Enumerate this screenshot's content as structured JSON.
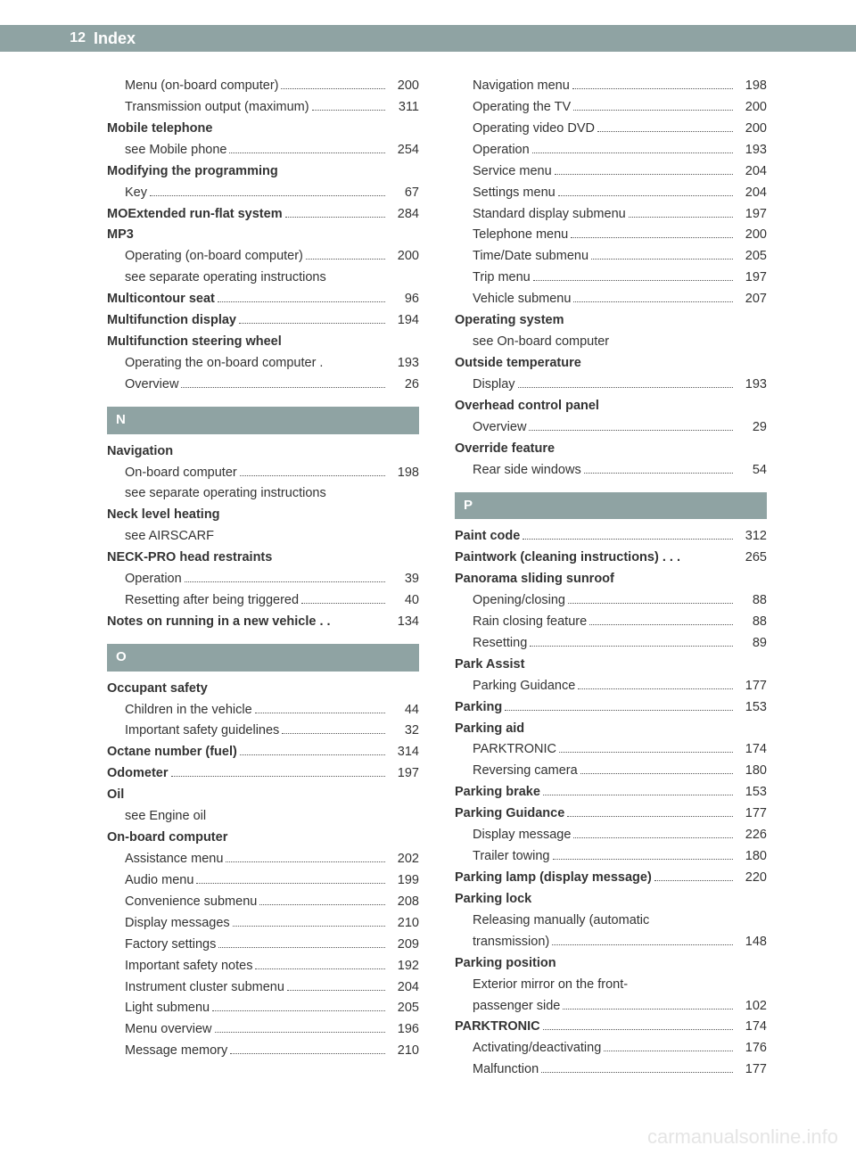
{
  "header": {
    "page_number": "12",
    "title": "Index"
  },
  "watermark": "carmanualsonline.info",
  "colors": {
    "header_bg": "#8fa3a3",
    "text": "#333333",
    "watermark": "#e5e5e5"
  },
  "left_column": [
    {
      "type": "sub",
      "label": "Menu (on-board computer)",
      "page": "200"
    },
    {
      "type": "sub",
      "label": "Transmission output (maximum)",
      "page": "311"
    },
    {
      "type": "bold-nodots",
      "label": "Mobile telephone"
    },
    {
      "type": "sub",
      "label": "see Mobile phone",
      "page": "254"
    },
    {
      "type": "bold-nodots",
      "label": "Modifying the programming"
    },
    {
      "type": "sub",
      "label": "Key",
      "page": "67"
    },
    {
      "type": "bold",
      "label": "MOExtended run-flat system",
      "page": "284"
    },
    {
      "type": "bold-nodots",
      "label": "MP3"
    },
    {
      "type": "sub",
      "label": "Operating (on-board computer)",
      "page": "200"
    },
    {
      "type": "sub-nodots",
      "label": "see separate operating instructions"
    },
    {
      "type": "bold",
      "label": "Multicontour seat",
      "page": "96"
    },
    {
      "type": "bold",
      "label": "Multifunction display",
      "page": "194"
    },
    {
      "type": "bold-nodots",
      "label": "Multifunction steering wheel"
    },
    {
      "type": "sub",
      "label": "Operating the on-board computer .",
      "page": "193",
      "nodash": true
    },
    {
      "type": "sub",
      "label": "Overview",
      "page": "26"
    },
    {
      "type": "section",
      "label": "N"
    },
    {
      "type": "bold-nodots",
      "label": "Navigation"
    },
    {
      "type": "sub",
      "label": "On-board computer",
      "page": "198"
    },
    {
      "type": "sub-nodots",
      "label": "see separate operating instructions"
    },
    {
      "type": "bold-nodots",
      "label": "Neck level heating"
    },
    {
      "type": "sub-nodots",
      "label": "see AIRSCARF"
    },
    {
      "type": "bold-nodots",
      "label": "NECK-PRO head restraints"
    },
    {
      "type": "sub",
      "label": "Operation",
      "page": "39"
    },
    {
      "type": "sub",
      "label": "Resetting after being triggered",
      "page": "40"
    },
    {
      "type": "bold",
      "label": "Notes on running in a new vehicle",
      "page": "134",
      "nodash": true,
      "suffix": " . ."
    },
    {
      "type": "section",
      "label": "O"
    },
    {
      "type": "bold-nodots",
      "label": "Occupant safety"
    },
    {
      "type": "sub",
      "label": "Children in the vehicle",
      "page": "44"
    },
    {
      "type": "sub",
      "label": "Important safety guidelines",
      "page": "32"
    },
    {
      "type": "bold",
      "label": "Octane number (fuel)",
      "page": "314"
    },
    {
      "type": "bold",
      "label": "Odometer",
      "page": "197"
    },
    {
      "type": "bold-nodots",
      "label": "Oil"
    },
    {
      "type": "sub-nodots",
      "label": "see Engine oil"
    },
    {
      "type": "bold-nodots",
      "label": "On-board computer"
    },
    {
      "type": "sub",
      "label": "Assistance menu",
      "page": "202"
    },
    {
      "type": "sub",
      "label": "Audio menu",
      "page": "199"
    },
    {
      "type": "sub",
      "label": "Convenience submenu",
      "page": "208"
    },
    {
      "type": "sub",
      "label": "Display messages",
      "page": "210"
    },
    {
      "type": "sub",
      "label": "Factory settings",
      "page": "209"
    },
    {
      "type": "sub",
      "label": "Important safety notes",
      "page": "192"
    },
    {
      "type": "sub",
      "label": "Instrument cluster submenu",
      "page": "204"
    },
    {
      "type": "sub",
      "label": "Light submenu",
      "page": "205"
    },
    {
      "type": "sub",
      "label": "Menu overview",
      "page": "196"
    },
    {
      "type": "sub",
      "label": "Message memory",
      "page": "210"
    }
  ],
  "right_column": [
    {
      "type": "sub",
      "label": "Navigation menu",
      "page": "198"
    },
    {
      "type": "sub",
      "label": "Operating the TV",
      "page": "200"
    },
    {
      "type": "sub",
      "label": "Operating video DVD",
      "page": "200"
    },
    {
      "type": "sub",
      "label": "Operation",
      "page": "193"
    },
    {
      "type": "sub",
      "label": "Service menu",
      "page": "204"
    },
    {
      "type": "sub",
      "label": "Settings menu",
      "page": "204"
    },
    {
      "type": "sub",
      "label": "Standard display submenu",
      "page": "197"
    },
    {
      "type": "sub",
      "label": "Telephone menu",
      "page": "200"
    },
    {
      "type": "sub",
      "label": "Time/Date submenu",
      "page": "205"
    },
    {
      "type": "sub",
      "label": "Trip menu",
      "page": "197"
    },
    {
      "type": "sub",
      "label": "Vehicle submenu",
      "page": "207"
    },
    {
      "type": "bold-nodots",
      "label": "Operating system"
    },
    {
      "type": "sub-nodots",
      "label": "see On-board computer"
    },
    {
      "type": "bold-nodots",
      "label": "Outside temperature"
    },
    {
      "type": "sub",
      "label": "Display",
      "page": "193"
    },
    {
      "type": "bold-nodots",
      "label": "Overhead control panel"
    },
    {
      "type": "sub",
      "label": "Overview",
      "page": "29"
    },
    {
      "type": "bold-nodots",
      "label": "Override feature"
    },
    {
      "type": "sub",
      "label": "Rear side windows",
      "page": "54"
    },
    {
      "type": "section",
      "label": "P"
    },
    {
      "type": "bold",
      "label": "Paint code",
      "page": "312"
    },
    {
      "type": "bold",
      "label": "Paintwork (cleaning instructions)",
      "page": "265",
      "nodash": true,
      "suffix": " . . ."
    },
    {
      "type": "bold-nodots",
      "label": "Panorama sliding sunroof"
    },
    {
      "type": "sub",
      "label": "Opening/closing",
      "page": "88"
    },
    {
      "type": "sub",
      "label": "Rain closing feature",
      "page": "88"
    },
    {
      "type": "sub",
      "label": "Resetting",
      "page": "89"
    },
    {
      "type": "bold-nodots",
      "label": "Park Assist"
    },
    {
      "type": "sub",
      "label": "Parking Guidance",
      "page": "177"
    },
    {
      "type": "bold",
      "label": "Parking",
      "page": "153"
    },
    {
      "type": "bold-nodots",
      "label": "Parking aid"
    },
    {
      "type": "sub",
      "label": "PARKTRONIC",
      "page": "174"
    },
    {
      "type": "sub",
      "label": "Reversing camera",
      "page": "180"
    },
    {
      "type": "bold",
      "label": "Parking brake",
      "page": "153"
    },
    {
      "type": "bold",
      "label": "Parking Guidance",
      "page": "177"
    },
    {
      "type": "sub",
      "label": "Display message",
      "page": "226"
    },
    {
      "type": "sub",
      "label": "Trailer towing",
      "page": "180"
    },
    {
      "type": "bold",
      "label": "Parking lamp (display message)",
      "page": "220"
    },
    {
      "type": "bold-nodots",
      "label": "Parking lock"
    },
    {
      "type": "sub-multiline",
      "label1": "Releasing manually (automatic",
      "label2": "transmission)",
      "page": "148"
    },
    {
      "type": "bold-nodots",
      "label": "Parking position"
    },
    {
      "type": "sub-multiline",
      "label1": "Exterior mirror on the front-",
      "label2": "passenger side",
      "page": "102"
    },
    {
      "type": "bold",
      "label": "PARKTRONIC",
      "page": "174"
    },
    {
      "type": "sub",
      "label": "Activating/deactivating",
      "page": "176"
    },
    {
      "type": "sub",
      "label": "Malfunction",
      "page": "177"
    }
  ]
}
